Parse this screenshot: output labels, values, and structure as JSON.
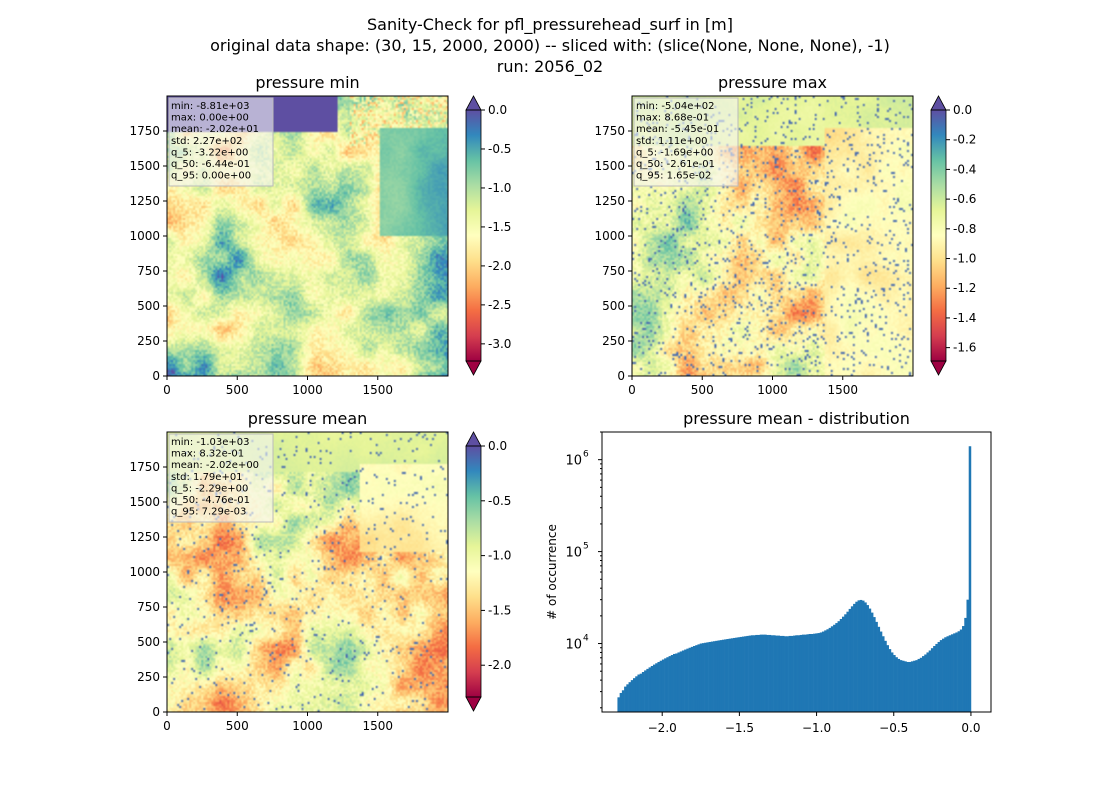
{
  "figure": {
    "title_lines": [
      "Sanity-Check for pfl_pressurehead_surf in [m]",
      "original data shape: (30, 15, 2000, 2000) -- sliced with: (slice(None, None, None), -1)",
      "run: 2056_02"
    ]
  },
  "colors": {
    "spectral": [
      "#9e0142",
      "#d53e4f",
      "#f46d43",
      "#fdae61",
      "#fee08b",
      "#ffffbf",
      "#e6f598",
      "#abdda4",
      "#66c2a5",
      "#3288bd",
      "#5e4fa2"
    ],
    "hist_bar": "#1f77b4"
  },
  "chart_data": [
    {
      "type": "heatmap",
      "title": "pressure min",
      "x_ticks": [
        0,
        500,
        1000,
        1500
      ],
      "y_ticks": [
        0,
        250,
        500,
        750,
        1000,
        1250,
        1500,
        1750
      ],
      "xlim": [
        0,
        2000
      ],
      "ylim": [
        0,
        2000
      ],
      "vmin": -3.22,
      "vmax": 0.0,
      "colorbar_ticks": [
        "0.0",
        "-0.5",
        "-1.0",
        "-1.5",
        "-2.0",
        "-2.5",
        "-3.0"
      ],
      "colorbar_tick_values": [
        0.0,
        -0.5,
        -1.0,
        -1.5,
        -2.0,
        -2.5,
        -3.0
      ],
      "colorbar_extend": "both",
      "stats_box": [
        "min: -8.81e+03",
        "max: 0.00e+00",
        "mean: -2.02e+01",
        "std: 2.27e+02",
        "q_5: -3.22e+00",
        "q_50: -6.44e-01",
        "q_95: 0.00e+00"
      ]
    },
    {
      "type": "heatmap",
      "title": "pressure max",
      "x_ticks": [
        0,
        500,
        1000,
        1500
      ],
      "y_ticks": [
        0,
        250,
        500,
        750,
        1000,
        1250,
        1500,
        1750
      ],
      "xlim": [
        0,
        2000
      ],
      "ylim": [
        0,
        2000
      ],
      "vmin": -1.69,
      "vmax": 0.0,
      "colorbar_ticks": [
        "0.0",
        "-0.2",
        "-0.4",
        "-0.6",
        "-0.8",
        "-1.0",
        "-1.2",
        "-1.4",
        "-1.6"
      ],
      "colorbar_tick_values": [
        0.0,
        -0.2,
        -0.4,
        -0.6,
        -0.8,
        -1.0,
        -1.2,
        -1.4,
        -1.6
      ],
      "colorbar_extend": "both",
      "stats_box": [
        "min: -5.04e+02",
        "max: 8.68e-01",
        "mean: -5.45e-01",
        "std: 1.11e+00",
        "q_5: -1.69e+00",
        "q_50: -2.61e-01",
        "q_95: 1.65e-02"
      ]
    },
    {
      "type": "heatmap",
      "title": "pressure mean",
      "x_ticks": [
        0,
        500,
        1000,
        1500
      ],
      "y_ticks": [
        0,
        250,
        500,
        750,
        1000,
        1250,
        1500,
        1750
      ],
      "xlim": [
        0,
        2000
      ],
      "ylim": [
        0,
        2000
      ],
      "vmin": -2.29,
      "vmax": 0.0,
      "colorbar_ticks": [
        "0.0",
        "-0.5",
        "-1.0",
        "-1.5",
        "-2.0"
      ],
      "colorbar_tick_values": [
        0.0,
        -0.5,
        -1.0,
        -1.5,
        -2.0
      ],
      "colorbar_extend": "both",
      "stats_box": [
        "min: -1.03e+03",
        "max: 8.32e-01",
        "mean: -2.02e+00",
        "std: 1.79e+01",
        "q_5: -2.29e+00",
        "q_50: -4.76e-01",
        "q_95: 7.29e-03"
      ]
    },
    {
      "type": "bar",
      "title": "pressure mean - distribution",
      "ylabel": "# of occurrence",
      "yscale": "log",
      "xlim": [
        -2.39,
        0.13
      ],
      "ylim": [
        1800,
        2000000
      ],
      "x_ticks": [
        -2.0,
        -1.5,
        -1.0,
        -0.5,
        0.0
      ],
      "x_tick_labels": [
        "−2.0",
        "−1.5",
        "−1.0",
        "−0.5",
        "0.0"
      ],
      "y_ticks": [
        10000,
        100000,
        1000000
      ],
      "y_tick_labels": [
        "10",
        "10",
        "10"
      ],
      "y_tick_exponents": [
        "4",
        "5",
        "6"
      ],
      "hist_range": [
        -2.29,
        0.0
      ],
      "hist_counts_approx": [
        2600,
        2900,
        3100,
        3400,
        3600,
        3800,
        4000,
        4200,
        4400,
        4600,
        4700,
        4900,
        5100,
        5300,
        5500,
        5700,
        5900,
        6100,
        6300,
        6500,
        6700,
        6900,
        7100,
        7300,
        7500,
        7700,
        7800,
        8000,
        8200,
        8400,
        8600,
        8800,
        9000,
        9200,
        9400,
        9600,
        9800,
        10000,
        10100,
        10200,
        10300,
        10400,
        10500,
        10600,
        10700,
        10800,
        10900,
        11000,
        11100,
        11200,
        11300,
        11400,
        11500,
        11600,
        11700,
        11800,
        11900,
        12000,
        12100,
        12200,
        12300,
        12300,
        12400,
        12400,
        12500,
        12500,
        12500,
        12400,
        12400,
        12300,
        12300,
        12200,
        12200,
        12100,
        12100,
        12000,
        12000,
        12100,
        12100,
        12200,
        12300,
        12300,
        12400,
        12500,
        12500,
        12600,
        12700,
        12700,
        12800,
        12900,
        13000,
        13200,
        13500,
        13900,
        14300,
        14800,
        15400,
        16000,
        16700,
        17500,
        18500,
        19600,
        20800,
        22200,
        23800,
        25400,
        27000,
        28500,
        29500,
        29800,
        29300,
        28000,
        26200,
        24000,
        21700,
        19400,
        17200,
        15200,
        13500,
        12000,
        10700,
        9600,
        8700,
        8000,
        7500,
        7100,
        6800,
        6600,
        6500,
        6400,
        6300,
        6300,
        6400,
        6500,
        6600,
        6800,
        7000,
        7300,
        7600,
        8000,
        8400,
        8900,
        9400,
        9900,
        10400,
        10900,
        11300,
        11700,
        12000,
        12300,
        12600,
        12900,
        13200,
        13600,
        14200,
        15500,
        19000,
        30000,
        1400000
      ]
    }
  ]
}
